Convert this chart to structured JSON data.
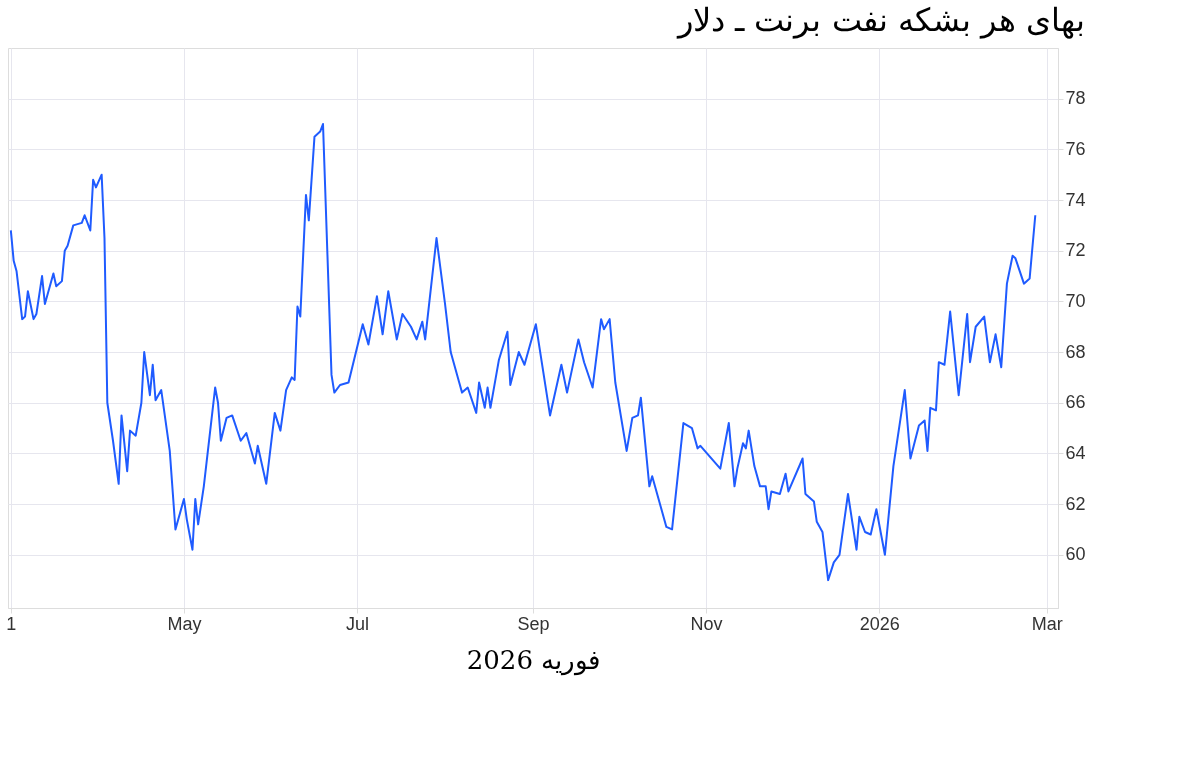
{
  "chart_data": {
    "type": "line",
    "title": "بهای هر بشکه نفت برنت ـ دلار",
    "xlabel": "فوریه 2026",
    "x": [
      "2025-03-01",
      "2025-03-02",
      "2025-03-03",
      "2025-03-05",
      "2025-03-06",
      "2025-03-07",
      "2025-03-09",
      "2025-03-10",
      "2025-03-12",
      "2025-03-13",
      "2025-03-16",
      "2025-03-17",
      "2025-03-19",
      "2025-03-20",
      "2025-03-21",
      "2025-03-23",
      "2025-03-26",
      "2025-03-27",
      "2025-03-29",
      "2025-03-30",
      "2025-03-31",
      "2025-04-02",
      "2025-04-03",
      "2025-04-04",
      "2025-04-06",
      "2025-04-08",
      "2025-04-09",
      "2025-04-11",
      "2025-04-12",
      "2025-04-14",
      "2025-04-16",
      "2025-04-17",
      "2025-04-19",
      "2025-04-20",
      "2025-04-21",
      "2025-04-23",
      "2025-04-26",
      "2025-04-28",
      "2025-05-01",
      "2025-05-02",
      "2025-05-04",
      "2025-05-05",
      "2025-05-06",
      "2025-05-08",
      "2025-05-12",
      "2025-05-13",
      "2025-05-14",
      "2025-05-16",
      "2025-05-18",
      "2025-05-21",
      "2025-05-23",
      "2025-05-26",
      "2025-05-27",
      "2025-05-30",
      "2025-06-02",
      "2025-06-04",
      "2025-06-06",
      "2025-06-08",
      "2025-06-09",
      "2025-06-10",
      "2025-06-11",
      "2025-06-13",
      "2025-06-14",
      "2025-06-16",
      "2025-06-18",
      "2025-06-19",
      "2025-06-22",
      "2025-06-23",
      "2025-06-25",
      "2025-06-28",
      "2025-07-03",
      "2025-07-05",
      "2025-07-08",
      "2025-07-10",
      "2025-07-12",
      "2025-07-15",
      "2025-07-17",
      "2025-07-20",
      "2025-07-22",
      "2025-07-24",
      "2025-07-25",
      "2025-07-29",
      "2025-08-01",
      "2025-08-03",
      "2025-08-06",
      "2025-08-07",
      "2025-08-09",
      "2025-08-12",
      "2025-08-13",
      "2025-08-15",
      "2025-08-16",
      "2025-08-17",
      "2025-08-20",
      "2025-08-23",
      "2025-08-24",
      "2025-08-27",
      "2025-08-29",
      "2025-09-02",
      "2025-09-07",
      "2025-09-11",
      "2025-09-13",
      "2025-09-17",
      "2025-09-19",
      "2025-09-22",
      "2025-09-25",
      "2025-09-26",
      "2025-09-28",
      "2025-09-30",
      "2025-10-04",
      "2025-10-06",
      "2025-10-08",
      "2025-10-09",
      "2025-10-12",
      "2025-10-13",
      "2025-10-18",
      "2025-10-20",
      "2025-10-24",
      "2025-10-27",
      "2025-10-29",
      "2025-10-30",
      "2025-11-06",
      "2025-11-09",
      "2025-11-11",
      "2025-11-12",
      "2025-11-14",
      "2025-11-15",
      "2025-11-16",
      "2025-11-18",
      "2025-11-20",
      "2025-11-22",
      "2025-11-23",
      "2025-11-24",
      "2025-11-27",
      "2025-11-29",
      "2025-11-30",
      "2025-12-05",
      "2025-12-06",
      "2025-12-09",
      "2025-12-10",
      "2025-12-12",
      "2025-12-14",
      "2025-12-16",
      "2025-12-18",
      "2025-12-21",
      "2025-12-24",
      "2025-12-25",
      "2025-12-27",
      "2025-12-29",
      "2025-12-31",
      "2026-01-03",
      "2026-01-06",
      "2026-01-10",
      "2026-01-12",
      "2026-01-15",
      "2026-01-17",
      "2026-01-18",
      "2026-01-19",
      "2026-01-21",
      "2026-01-22",
      "2026-01-24",
      "2026-01-26",
      "2026-01-29",
      "2026-02-01",
      "2026-02-02",
      "2026-02-04",
      "2026-02-07",
      "2026-02-09",
      "2026-02-11",
      "2026-02-13",
      "2026-02-15",
      "2026-02-17",
      "2026-02-18",
      "2026-02-21",
      "2026-02-23",
      "2026-02-25"
    ],
    "series": [
      {
        "color": "#1f5bff",
        "values": [
          72.8,
          71.6,
          71.2,
          69.3,
          69.4,
          70.4,
          69.3,
          69.5,
          71.0,
          69.9,
          71.1,
          70.6,
          70.8,
          72.0,
          72.2,
          73.0,
          73.1,
          73.4,
          72.8,
          74.8,
          74.5,
          75.0,
          72.5,
          66.0,
          64.5,
          62.8,
          65.5,
          63.3,
          64.9,
          64.7,
          66.0,
          68.0,
          66.3,
          67.5,
          66.1,
          66.5,
          64.1,
          61.0,
          62.2,
          61.4,
          60.2,
          62.2,
          61.2,
          62.7,
          66.6,
          66.0,
          64.5,
          65.4,
          65.5,
          64.5,
          64.8,
          63.6,
          64.3,
          62.8,
          65.6,
          64.9,
          66.5,
          67.0,
          66.9,
          69.8,
          69.4,
          74.2,
          73.2,
          76.5,
          76.7,
          77.0,
          67.1,
          66.4,
          66.7,
          66.8,
          69.1,
          68.3,
          70.2,
          68.7,
          70.4,
          68.5,
          69.5,
          69.0,
          68.5,
          69.2,
          68.5,
          72.5,
          69.9,
          68.0,
          66.8,
          66.4,
          66.6,
          65.6,
          66.8,
          65.8,
          66.6,
          65.8,
          67.7,
          68.8,
          66.7,
          68.0,
          67.5,
          69.1,
          65.5,
          67.5,
          66.4,
          68.5,
          67.6,
          66.6,
          69.3,
          68.9,
          69.3,
          66.8,
          64.1,
          65.4,
          65.5,
          66.2,
          62.7,
          63.1,
          61.1,
          61.0,
          65.2,
          65.0,
          64.2,
          64.3,
          63.4,
          65.2,
          62.7,
          63.4,
          64.4,
          64.2,
          64.9,
          63.5,
          62.7,
          62.7,
          61.8,
          62.5,
          62.4,
          63.2,
          62.5,
          63.8,
          62.4,
          62.1,
          61.3,
          60.9,
          59.0,
          59.7,
          60.0,
          62.4,
          60.2,
          61.5,
          60.9,
          60.8,
          61.8,
          60.0,
          63.5,
          66.5,
          63.8,
          65.1,
          65.3,
          64.1,
          65.8,
          65.7,
          67.6,
          67.5,
          69.6,
          66.3,
          69.5,
          67.6,
          69.0,
          69.4,
          67.6,
          68.7,
          67.4,
          70.7,
          71.8,
          71.7,
          70.7,
          70.9,
          73.4
        ]
      }
    ],
    "xlim": [
      "2025-02-28",
      "2026-03-05"
    ],
    "xticks": [
      {
        "value": "2025-03-01",
        "label": "1"
      },
      {
        "value": "2025-05-01",
        "label": "May"
      },
      {
        "value": "2025-07-01",
        "label": "Jul"
      },
      {
        "value": "2025-09-01",
        "label": "Sep"
      },
      {
        "value": "2025-11-01",
        "label": "Nov"
      },
      {
        "value": "2026-01-01",
        "label": "2026"
      },
      {
        "value": "2026-03-01",
        "label": "Mar"
      }
    ],
    "ylim": [
      57.9,
      80
    ],
    "yticks": [
      60,
      62,
      64,
      66,
      68,
      70,
      72,
      74,
      76,
      78
    ],
    "grid": true
  }
}
